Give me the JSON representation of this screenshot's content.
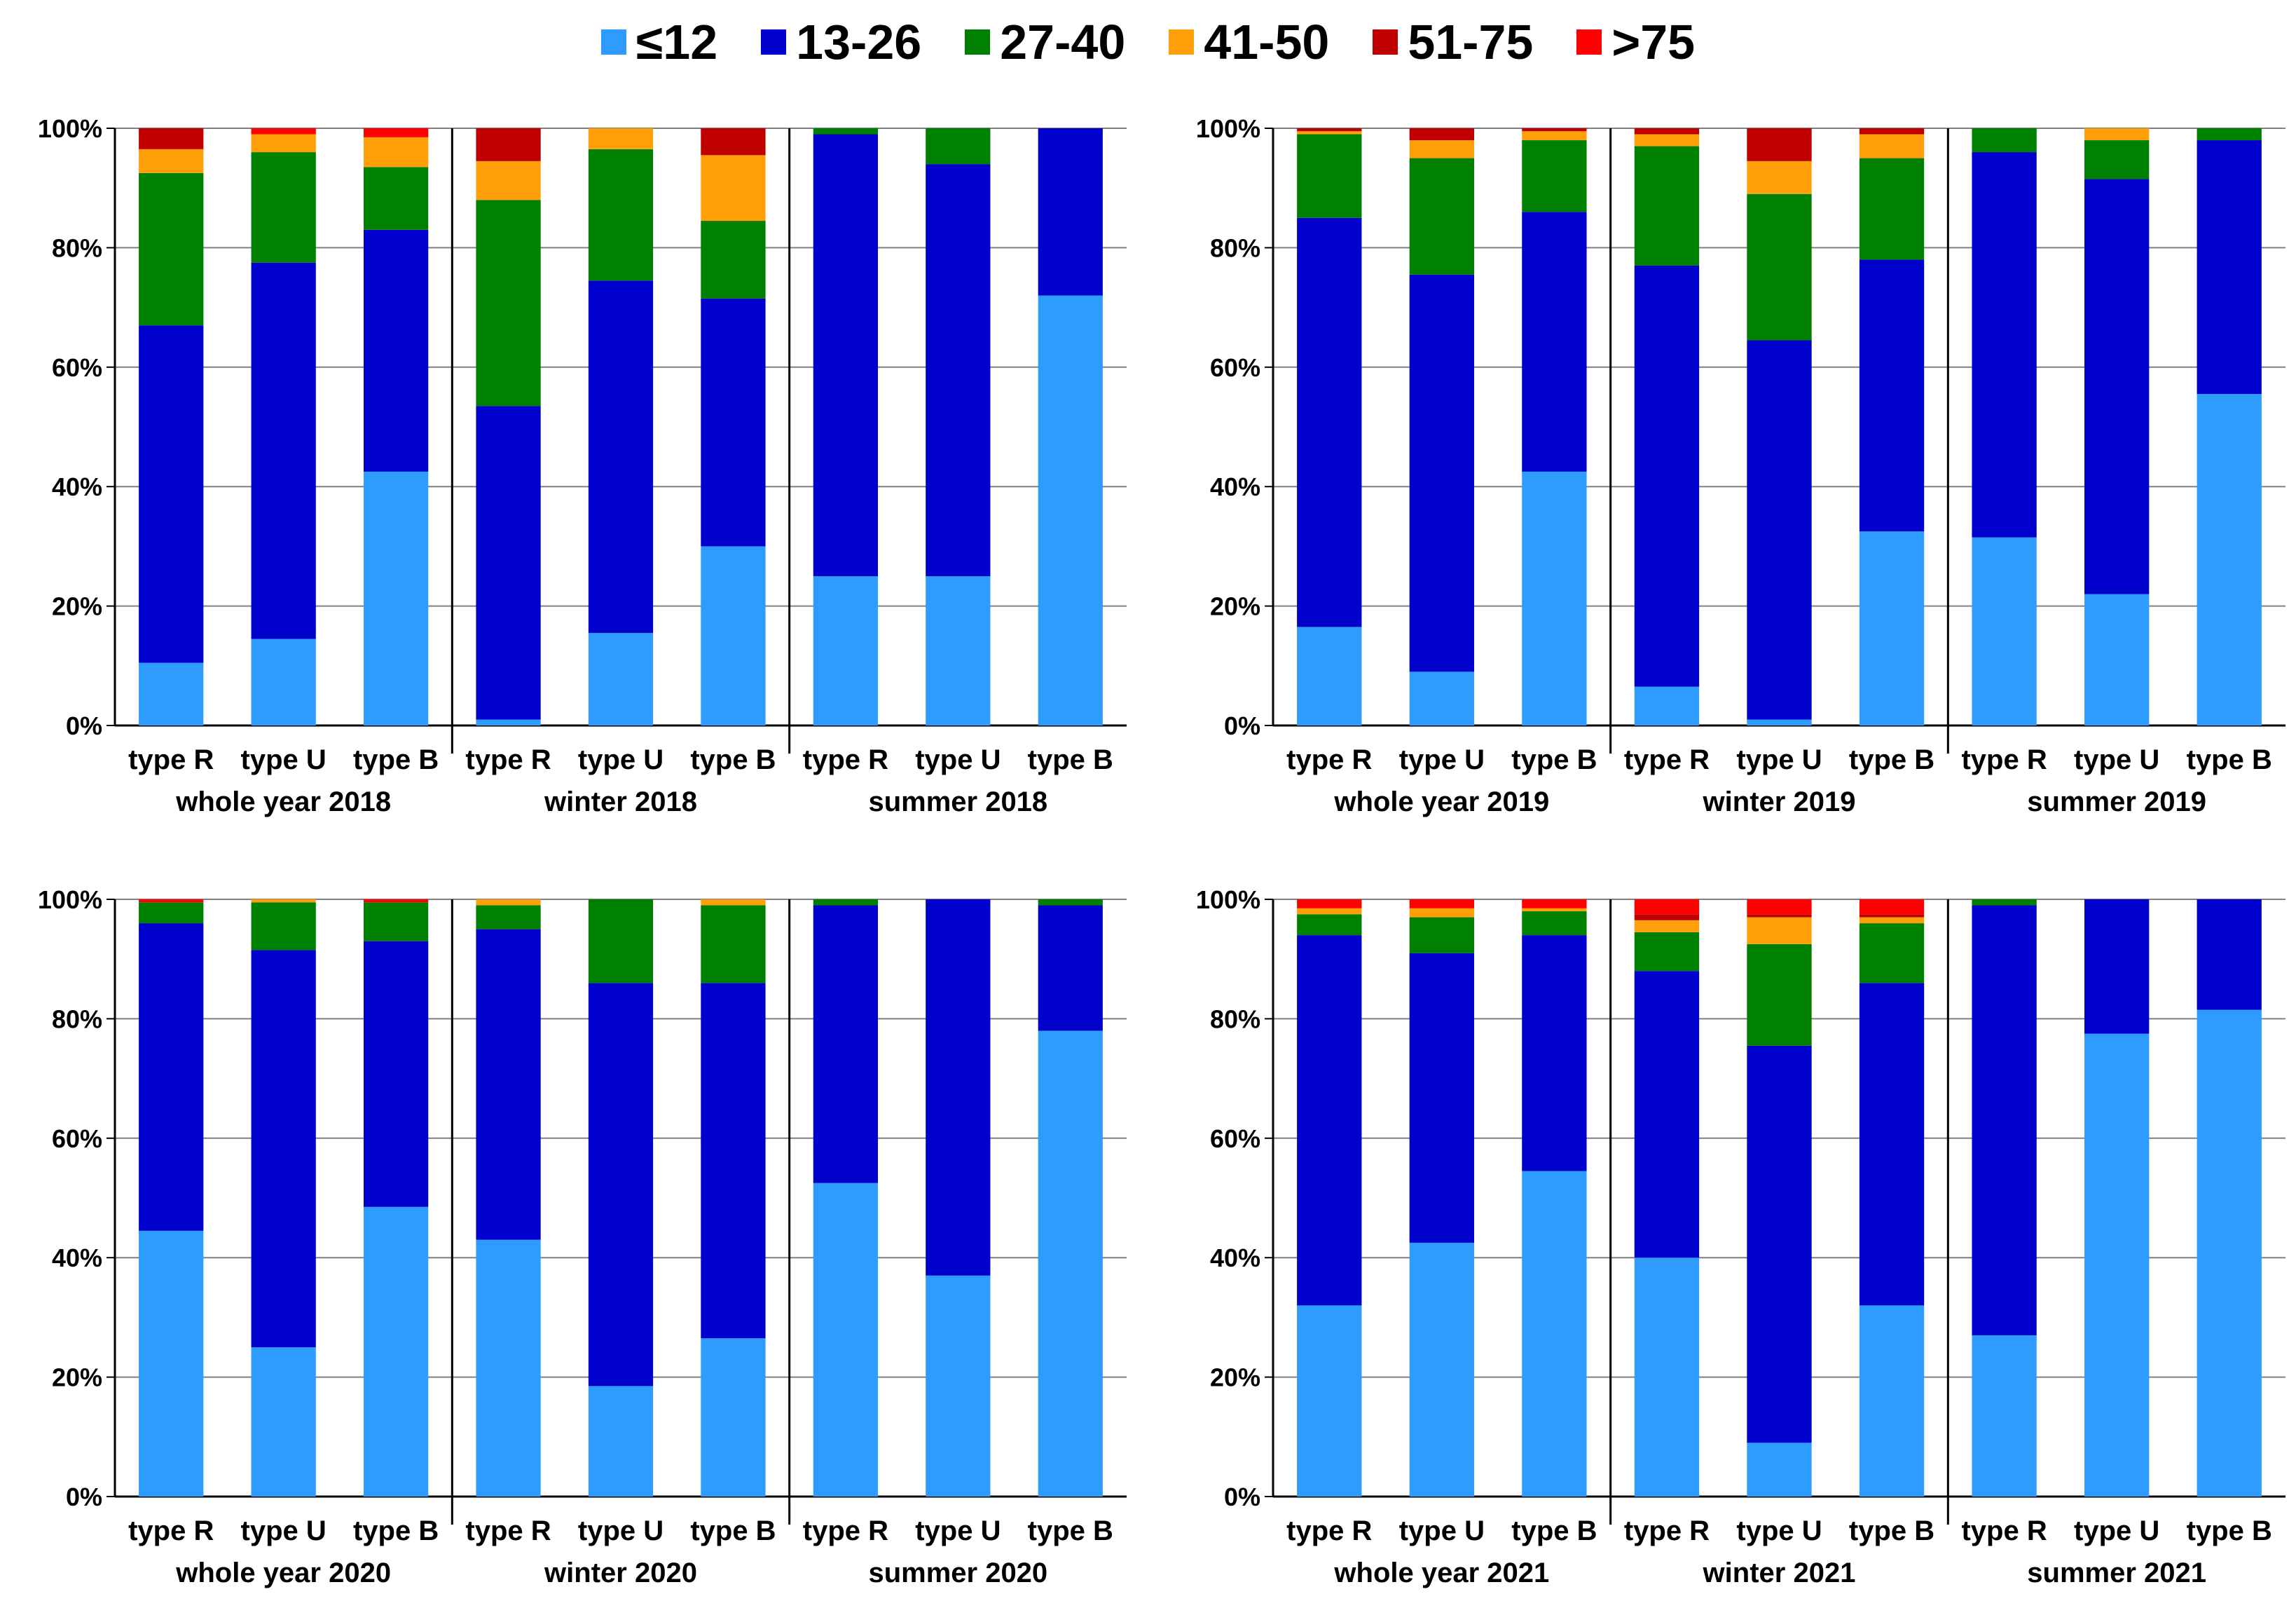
{
  "colors": {
    "le12": "#2E9BFF",
    "13-26": "#0000CC",
    "27-40": "#008000",
    "41-50": "#FF9F0A",
    "51-75": "#C00000",
    "gt75": "#FF0000"
  },
  "legend": [
    {
      "key": "le12",
      "label": "≤12"
    },
    {
      "key": "13-26",
      "label": "13-26"
    },
    {
      "key": "27-40",
      "label": "27-40"
    },
    {
      "key": "41-50",
      "label": "41-50"
    },
    {
      "key": "51-75",
      "label": "51-75"
    },
    {
      "key": "gt75",
      "label": ">75"
    }
  ],
  "chart_data": [
    {
      "type": "bar",
      "stacked": true,
      "title": "",
      "y_tick_labels": [
        "0%",
        "20%",
        "40%",
        "60%",
        "80%",
        "100%"
      ],
      "ylim": [
        0,
        100
      ],
      "groups": [
        {
          "label": "whole year 2018",
          "categories": [
            "type R",
            "type U",
            "type B"
          ],
          "stacks": [
            [
              10.5,
              56.5,
              25.5,
              4,
              3.5,
              0
            ],
            [
              14.5,
              63,
              18.5,
              3,
              0,
              1
            ],
            [
              42.5,
              40.5,
              10.5,
              5,
              0,
              1.5
            ]
          ]
        },
        {
          "label": "winter 2018",
          "categories": [
            "type R",
            "type U",
            "type B"
          ],
          "stacks": [
            [
              1,
              52.5,
              34.5,
              6.5,
              5.5,
              0
            ],
            [
              15.5,
              59,
              22,
              3.5,
              0,
              0
            ],
            [
              30,
              41.5,
              13,
              11,
              4.5,
              0
            ]
          ]
        },
        {
          "label": "summer 2018",
          "categories": [
            "type R",
            "type U",
            "type B"
          ],
          "stacks": [
            [
              25,
              74,
              1,
              0,
              0,
              0
            ],
            [
              25,
              69,
              6,
              0,
              0,
              0
            ],
            [
              72,
              28,
              0,
              0,
              0,
              0
            ]
          ]
        }
      ]
    },
    {
      "type": "bar",
      "stacked": true,
      "title": "",
      "y_tick_labels": [
        "0%",
        "20%",
        "40%",
        "60%",
        "80%",
        "100%"
      ],
      "ylim": [
        0,
        100
      ],
      "groups": [
        {
          "label": "whole year 2019",
          "categories": [
            "type R",
            "type U",
            "type B"
          ],
          "stacks": [
            [
              16.5,
              68.5,
              14,
              0.5,
              0.5,
              0
            ],
            [
              9,
              66.5,
              19.5,
              3,
              2,
              0
            ],
            [
              42.5,
              43.5,
              12,
              1.5,
              0.5,
              0
            ]
          ]
        },
        {
          "label": "winter 2019",
          "categories": [
            "type R",
            "type U",
            "type B"
          ],
          "stacks": [
            [
              6.5,
              70.5,
              20,
              2,
              1,
              0
            ],
            [
              1,
              63.5,
              24.5,
              5.5,
              5.5,
              0
            ],
            [
              32.5,
              45.5,
              17,
              4,
              1,
              0
            ]
          ]
        },
        {
          "label": "summer 2019",
          "categories": [
            "type R",
            "type U",
            "type B"
          ],
          "stacks": [
            [
              31.5,
              64.5,
              4,
              0,
              0,
              0
            ],
            [
              22,
              69.5,
              6.5,
              2,
              0,
              0
            ],
            [
              55.5,
              42.5,
              2,
              0,
              0,
              0
            ]
          ]
        }
      ]
    },
    {
      "type": "bar",
      "stacked": true,
      "title": "",
      "y_tick_labels": [
        "0%",
        "20%",
        "40%",
        "60%",
        "80%",
        "100%"
      ],
      "ylim": [
        0,
        100
      ],
      "groups": [
        {
          "label": "whole year 2020",
          "categories": [
            "type R",
            "type U",
            "type B"
          ],
          "stacks": [
            [
              44.5,
              51.5,
              3.5,
              0,
              0,
              0.5
            ],
            [
              25,
              66.5,
              8,
              0.5,
              0,
              0
            ],
            [
              48.5,
              44.5,
              6.5,
              0,
              0,
              0.5
            ]
          ]
        },
        {
          "label": "winter 2020",
          "categories": [
            "type R",
            "type U",
            "type B"
          ],
          "stacks": [
            [
              43,
              52,
              4,
              1,
              0,
              0
            ],
            [
              18.5,
              67.5,
              14,
              0,
              0,
              0
            ],
            [
              26.5,
              59.5,
              13,
              1,
              0,
              0
            ]
          ]
        },
        {
          "label": "summer 2020",
          "categories": [
            "type R",
            "type U",
            "type B"
          ],
          "stacks": [
            [
              52.5,
              46.5,
              1,
              0,
              0,
              0
            ],
            [
              37,
              63,
              0,
              0,
              0,
              0
            ],
            [
              78,
              21,
              1,
              0,
              0,
              0
            ]
          ]
        }
      ]
    },
    {
      "type": "bar",
      "stacked": true,
      "title": "",
      "y_tick_labels": [
        "0%",
        "20%",
        "40%",
        "60%",
        "80%",
        "100%"
      ],
      "ylim": [
        0,
        100
      ],
      "groups": [
        {
          "label": "whole year 2021",
          "categories": [
            "type R",
            "type U",
            "type B"
          ],
          "stacks": [
            [
              32,
              62,
              3.5,
              1,
              0,
              1.5
            ],
            [
              42.5,
              48.5,
              6,
              1.5,
              0,
              1.5
            ],
            [
              54.5,
              39.5,
              4,
              0.5,
              0,
              1.5
            ]
          ]
        },
        {
          "label": "winter 2021",
          "categories": [
            "type R",
            "type U",
            "type B"
          ],
          "stacks": [
            [
              40,
              48,
              6.5,
              2,
              1,
              2.5
            ],
            [
              9,
              66.5,
              17,
              4.5,
              0.5,
              2.5
            ],
            [
              32,
              54,
              10,
              1,
              0.5,
              2.5
            ]
          ]
        },
        {
          "label": "summer 2021",
          "categories": [
            "type R",
            "type U",
            "type B"
          ],
          "stacks": [
            [
              27,
              72,
              1,
              0,
              0,
              0
            ],
            [
              77.5,
              22.5,
              0,
              0,
              0,
              0
            ],
            [
              81.5,
              18.5,
              0,
              0,
              0,
              0
            ]
          ]
        }
      ]
    }
  ]
}
